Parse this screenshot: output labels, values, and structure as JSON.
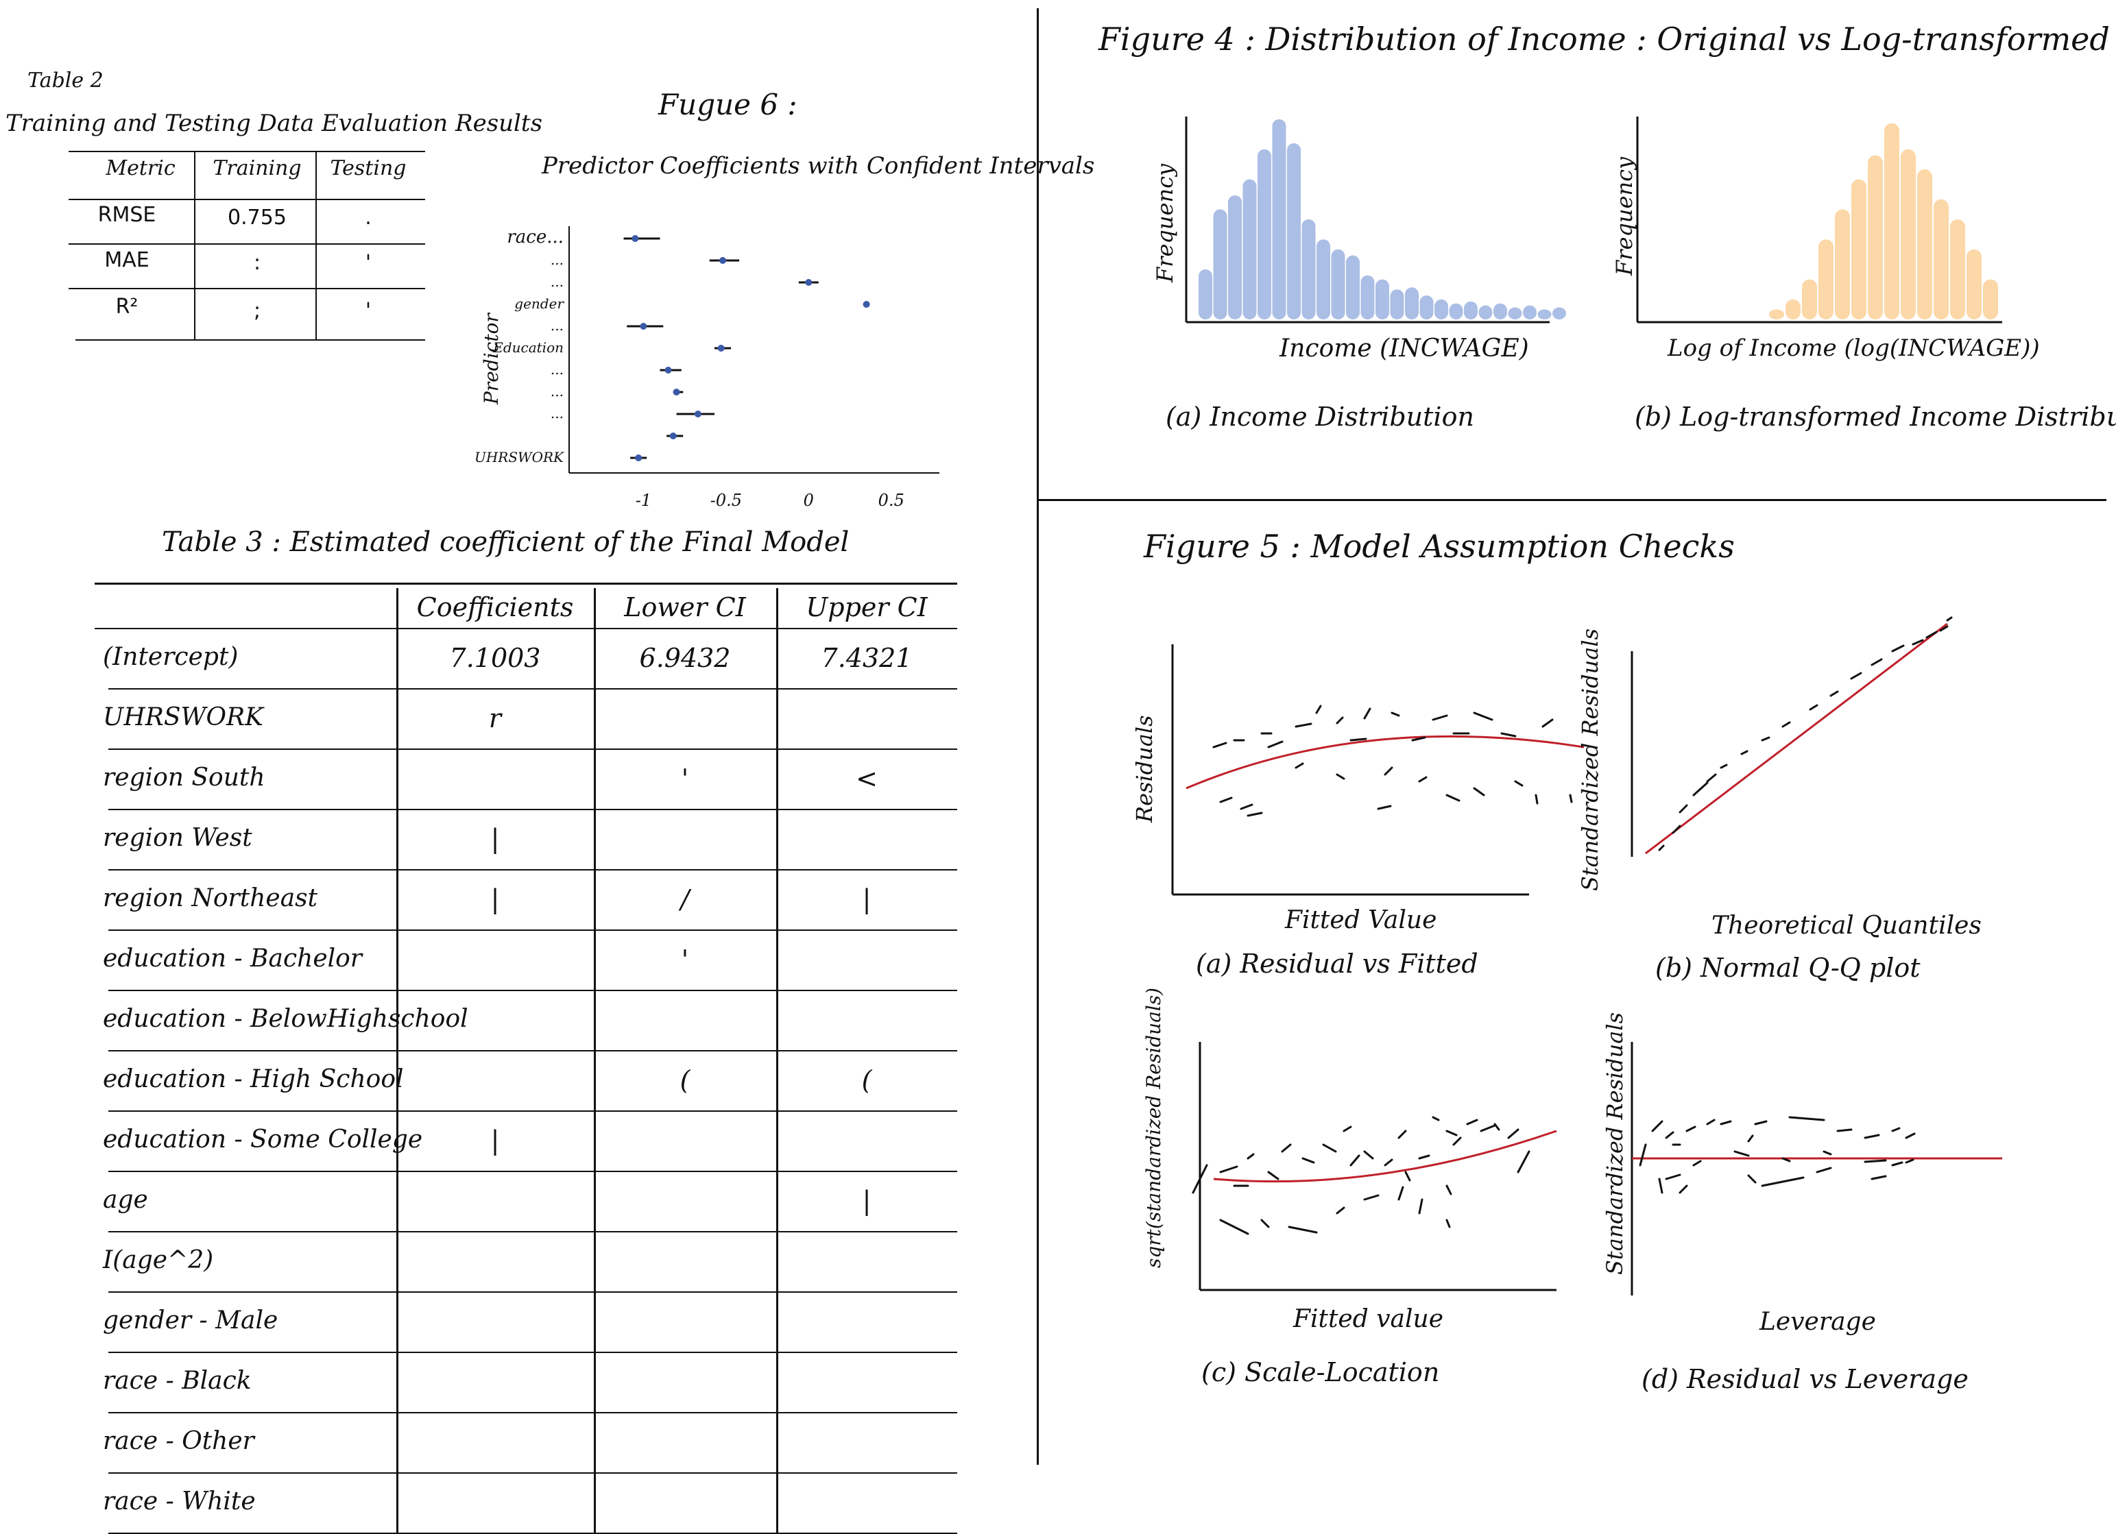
{
  "table2": {
    "label": "Table 2",
    "title": "Training and Testing Data Evaluation Results",
    "headers": [
      "Metric",
      "Training",
      "Testing"
    ],
    "rows": [
      {
        "metric": "RMSE",
        "training": "0.755",
        "testing": "."
      },
      {
        "metric": "MAE",
        "training": ":",
        "testing": "'"
      },
      {
        "metric": "R²",
        "training": ";",
        "testing": "'"
      }
    ]
  },
  "figure6": {
    "label": "Fugue 6 :",
    "title": "Predictor Coefficients with Confident Intervals",
    "ylabel": "Predictor",
    "y_ticks": [
      "race...",
      "...",
      "...",
      "gender",
      "...",
      "Education",
      "...",
      "...",
      "...",
      "UHRSWORK"
    ],
    "x_ticks": [
      "-1",
      "-0.5",
      "0",
      "0.5"
    ]
  },
  "chart_data": [
    {
      "type": "scatter",
      "title": "Predictor Coefficients with Confident Intervals",
      "ylabel": "Predictor",
      "xlim": [
        -1.45,
        0.75
      ],
      "points": [
        {
          "y": 1,
          "x": -1.05,
          "lo": -1.12,
          "hi": -0.9
        },
        {
          "y": 2,
          "x": -0.52,
          "lo": -0.6,
          "hi": -0.42
        },
        {
          "y": 3,
          "x": 0.0,
          "lo": -0.06,
          "hi": 0.06
        },
        {
          "y": 4,
          "x": 0.35,
          "lo": 0.33,
          "hi": 0.37
        },
        {
          "y": 5,
          "x": -1.0,
          "lo": -1.1,
          "hi": -0.88
        },
        {
          "y": 6,
          "x": -0.53,
          "lo": -0.57,
          "hi": -0.47
        },
        {
          "y": 7,
          "x": -0.85,
          "lo": -0.9,
          "hi": -0.77
        },
        {
          "y": 8,
          "x": -0.8,
          "lo": -0.82,
          "hi": -0.76
        },
        {
          "y": 9,
          "x": -0.67,
          "lo": -0.8,
          "hi": -0.57
        },
        {
          "y": 10,
          "x": -0.82,
          "lo": -0.86,
          "hi": -0.76
        },
        {
          "y": 11,
          "x": -1.03,
          "lo": -1.08,
          "hi": -0.98
        }
      ]
    }
  ],
  "table3": {
    "title": "Table 3 : Estimated coefficient of the Final Model",
    "headers": [
      "",
      "Coefficients",
      "Lower CI",
      "Upper CI"
    ],
    "rows": [
      {
        "name": "(Intercept)",
        "coef": "7.1003",
        "lower": "6.9432",
        "upper": "7.4321"
      },
      {
        "name": "UHRSWORK",
        "coef": "r",
        "lower": "",
        "upper": ""
      },
      {
        "name": "region South",
        "coef": "",
        "lower": "'",
        "upper": "<"
      },
      {
        "name": "region West",
        "coef": "|",
        "lower": "",
        "upper": ""
      },
      {
        "name": "region Northeast",
        "coef": "|",
        "lower": "/",
        "upper": "|"
      },
      {
        "name": "education - Bachelor",
        "coef": "",
        "lower": "'",
        "upper": ""
      },
      {
        "name": "education - BelowHighschool",
        "coef": "",
        "lower": "",
        "upper": ""
      },
      {
        "name": "education - High School",
        "coef": "",
        "lower": "(",
        "upper": "("
      },
      {
        "name": "education - Some College",
        "coef": "|",
        "lower": "",
        "upper": ""
      },
      {
        "name": "age",
        "coef": "",
        "lower": "",
        "upper": "|"
      },
      {
        "name": "I(age^2)",
        "coef": "",
        "lower": "",
        "upper": ""
      },
      {
        "name": "gender - Male",
        "coef": "",
        "lower": "",
        "upper": ""
      },
      {
        "name": "race - Black",
        "coef": "",
        "lower": "",
        "upper": ""
      },
      {
        "name": "race - Other",
        "coef": "",
        "lower": "",
        "upper": ""
      },
      {
        "name": "race - White",
        "coef": "",
        "lower": "",
        "upper": ""
      }
    ]
  },
  "figure4": {
    "title": "Figure 4 : Distribution of Income : Original vs Log-transformed",
    "a": {
      "ylabel": "Frequency",
      "xlabel": "Income (INCWAGE)",
      "caption": "(a) Income Distribution",
      "color": "#8fa8dc",
      "bars": [
        0.25,
        0.55,
        0.62,
        0.7,
        0.85,
        1.0,
        0.88,
        0.5,
        0.4,
        0.35,
        0.32,
        0.22,
        0.2,
        0.15,
        0.16,
        0.12,
        0.1,
        0.08,
        0.09,
        0.07,
        0.08,
        0.06,
        0.07,
        0.05,
        0.06
      ]
    },
    "b": {
      "ylabel": "Frequency",
      "xlabel": "Log of Income (log(INCWAGE))",
      "caption": "(b) Log-transformed Income Distribution",
      "color": "#fbc98a",
      "bars": [
        0.05,
        0.1,
        0.2,
        0.4,
        0.55,
        0.7,
        0.82,
        0.98,
        0.85,
        0.75,
        0.6,
        0.5,
        0.35,
        0.2
      ]
    }
  },
  "figure5": {
    "title": "Figure 5 : Model Assumption Checks",
    "fit_color": "#c0202a",
    "a": {
      "ylabel": "Residuals",
      "xlabel": "Fitted Value",
      "caption": "(a) Residual vs Fitted"
    },
    "b": {
      "ylabel": "Standardized Residuals",
      "xlabel": "Theoretical Quantiles",
      "caption": "(b) Normal Q-Q plot"
    },
    "c": {
      "ylabel": "sqrt(standardized Residuals)",
      "xlabel": "Fitted value",
      "caption": "(c) Scale-Location"
    },
    "d": {
      "ylabel": "Standardized Residuals",
      "xlabel": "Leverage",
      "caption": "(d) Residual vs Leverage"
    }
  }
}
